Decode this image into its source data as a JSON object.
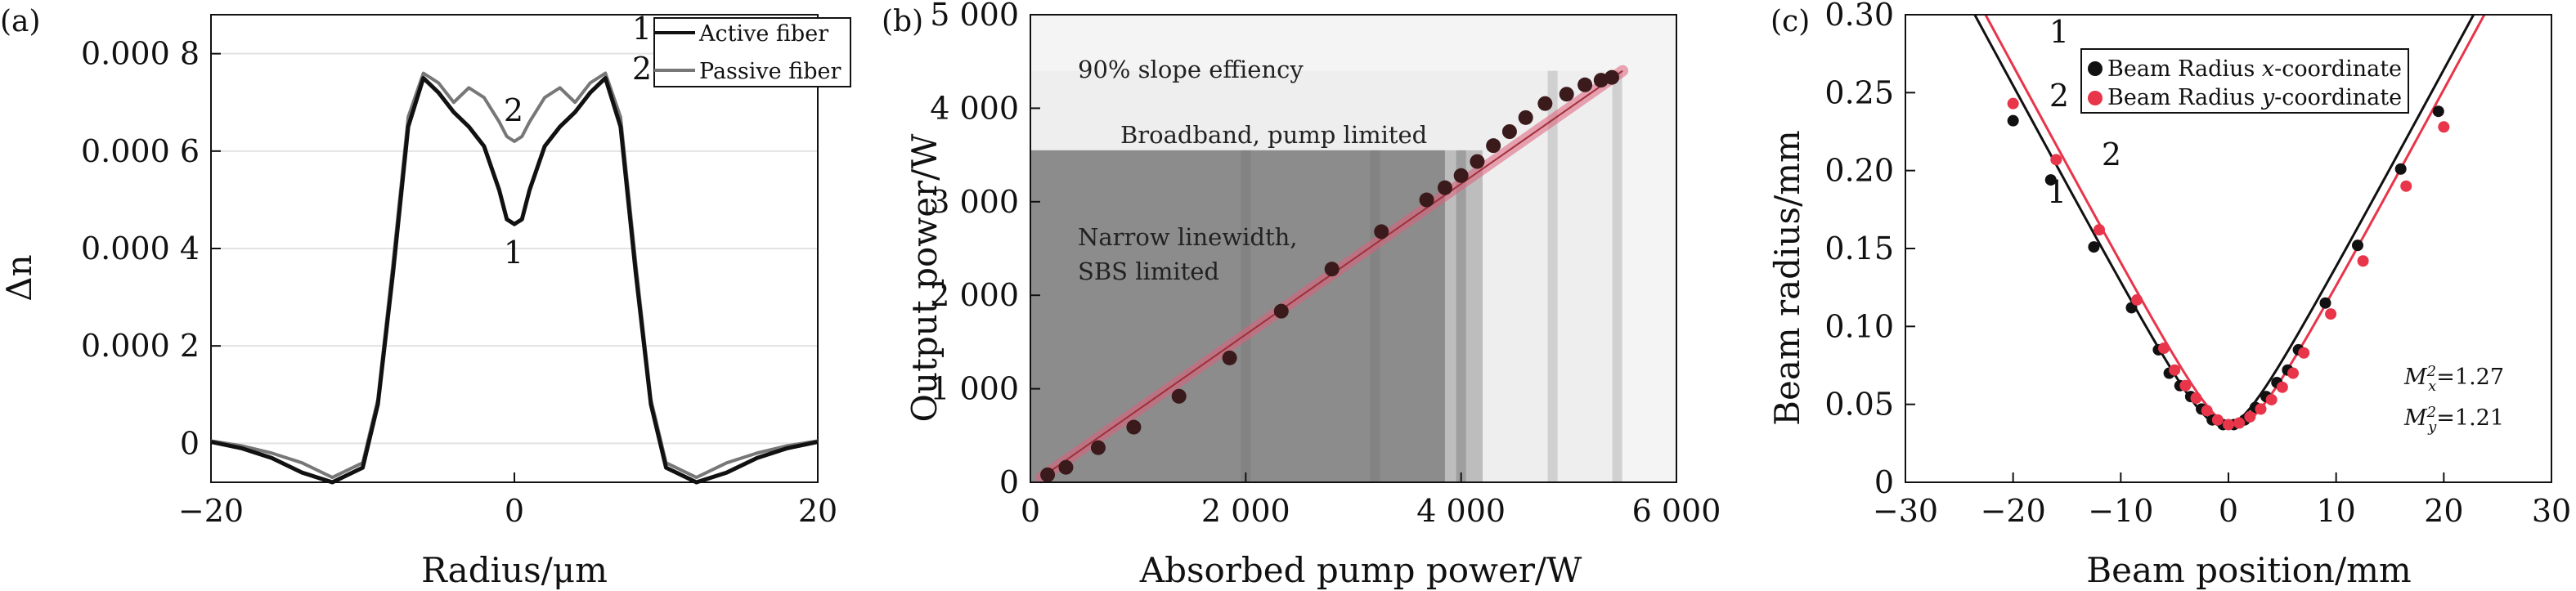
{
  "chart_data": [
    {
      "panel_label": "(a)",
      "type": "line",
      "xlabel": "Radius/μm",
      "ylabel": "Δn",
      "xlim": [
        -20,
        20
      ],
      "ylim": [
        -8e-05,
        0.00088
      ],
      "x_ticks": [
        -20,
        0,
        20
      ],
      "x_tick_labels": [
        "−20",
        "0",
        "20"
      ],
      "y_ticks": [
        0,
        0.0002,
        0.0004,
        0.0006,
        0.0008
      ],
      "y_tick_labels": [
        "0",
        "0.000 2",
        "0.000 4",
        "0.000 6",
        "0.000 8"
      ],
      "legend": {
        "placement": "top-right",
        "entries": [
          {
            "number": "1",
            "label": "Active fiber"
          },
          {
            "number": "2",
            "label": "Passive fiber"
          }
        ]
      },
      "annotations": [
        {
          "text": "2",
          "x": 0,
          "y": 0.00071
        },
        {
          "text": "1",
          "x": 0,
          "y": 0.00033
        }
      ],
      "series": [
        {
          "name": "Active fiber",
          "color": "#111111",
          "x": [
            -20,
            -18,
            -16,
            -14,
            -12,
            -10,
            -9,
            -8,
            -7,
            -6,
            -5,
            -4,
            -3,
            -2,
            -1,
            -0.5,
            0,
            0.5,
            1,
            2,
            3,
            4,
            5,
            6,
            7,
            8,
            9,
            10,
            12,
            14,
            16,
            18,
            20
          ],
          "y": [
            3e-06,
            -1e-05,
            -3e-05,
            -6e-05,
            -8e-05,
            -5e-05,
            8e-05,
            0.00035,
            0.00065,
            0.00075,
            0.00072,
            0.00068,
            0.00065,
            0.00061,
            0.00052,
            0.00046,
            0.00045,
            0.00046,
            0.00052,
            0.00061,
            0.00065,
            0.00068,
            0.00072,
            0.00075,
            0.00065,
            0.00035,
            8e-05,
            -5e-05,
            -8e-05,
            -6e-05,
            -3e-05,
            -1e-05,
            3e-06
          ]
        },
        {
          "name": "Passive fiber",
          "color": "#777777",
          "x": [
            -20,
            -18,
            -16,
            -14,
            -12,
            -10,
            -9,
            -8,
            -7,
            -6,
            -5,
            -4,
            -3,
            -2,
            -1,
            -0.5,
            0,
            0.5,
            1,
            2,
            3,
            4,
            5,
            6,
            7,
            8,
            9,
            10,
            12,
            14,
            16,
            18,
            20
          ],
          "y": [
            5e-06,
            -5e-06,
            -2e-05,
            -4e-05,
            -7e-05,
            -4e-05,
            9e-05,
            0.00037,
            0.00067,
            0.00076,
            0.00074,
            0.0007,
            0.00073,
            0.00071,
            0.00066,
            0.00063,
            0.00062,
            0.00063,
            0.00066,
            0.00071,
            0.00073,
            0.0007,
            0.00074,
            0.00076,
            0.00067,
            0.00037,
            9e-05,
            -4e-05,
            -7e-05,
            -4e-05,
            -2e-05,
            -5e-06,
            5e-06
          ]
        }
      ]
    },
    {
      "panel_label": "(b)",
      "type": "scatter",
      "xlabel": "Absorbed pump power/W",
      "ylabel": "Output power/W",
      "xlim": [
        0,
        6000
      ],
      "ylim": [
        0,
        5000
      ],
      "x_ticks": [
        0,
        2000,
        4000,
        6000
      ],
      "x_tick_labels": [
        "0",
        "2 000",
        "4 000",
        "6 000"
      ],
      "y_ticks": [
        0,
        1000,
        2000,
        3000,
        4000,
        5000
      ],
      "y_tick_labels": [
        "0",
        "1 000",
        "2 000",
        "3 000",
        "4 000",
        "5 000"
      ],
      "regions": [
        {
          "label": "90% slope effiency",
          "x_end": 5450,
          "y_top": 4400,
          "color": "#eeeeee"
        },
        {
          "label": "Broadband, pump limited",
          "x_end": 4200,
          "y_top": 3550,
          "color": "#bdbdbd"
        },
        {
          "label": "Narrow linewidth,",
          "label2": "SBS limited",
          "x_end": 3850,
          "y_top": 3550,
          "color": "#8c8c8c"
        }
      ],
      "fit_line": {
        "color": "#e0607a",
        "x": [
          100,
          5500
        ],
        "y": [
          50,
          4400
        ]
      },
      "points": {
        "color": "#3a1a1a",
        "x": [
          160,
          330,
          630,
          960,
          1380,
          1850,
          2330,
          2800,
          3260,
          3680,
          3850,
          4000,
          4150,
          4300,
          4450,
          4600,
          4780,
          4980,
          5150,
          5300,
          5400
        ],
        "y": [
          80,
          160,
          370,
          590,
          920,
          1330,
          1830,
          2280,
          2680,
          3020,
          3150,
          3280,
          3430,
          3600,
          3750,
          3900,
          4050,
          4150,
          4250,
          4300,
          4330
        ]
      }
    },
    {
      "panel_label": "(c)",
      "type": "scatter",
      "xlabel": "Beam position/mm",
      "ylabel": "Beam radius/mm",
      "xlim": [
        -30,
        30
      ],
      "ylim": [
        0,
        0.3
      ],
      "x_ticks": [
        -30,
        -20,
        -10,
        0,
        10,
        20,
        30
      ],
      "x_tick_labels": [
        "−30",
        "−20",
        "−10",
        "0",
        "10",
        "20",
        "30"
      ],
      "y_ticks": [
        0,
        0.05,
        0.1,
        0.15,
        0.2,
        0.25,
        0.3
      ],
      "y_tick_labels": [
        "0",
        "0.05",
        "0.10",
        "0.15",
        "0.20",
        "0.25",
        "0.30"
      ],
      "legend": {
        "placement": "top-right",
        "entries": [
          {
            "number": "1",
            "label_pre": "Beam Radius ",
            "label_italic": "x",
            "label_post": "-coordinate",
            "color": "#111111"
          },
          {
            "number": "2",
            "label_pre": "Beam Radius ",
            "label_italic": "y",
            "label_post": "-coordinate",
            "color": "#e8354a"
          }
        ]
      },
      "annotations": [
        {
          "text": "2",
          "x": -14.5,
          "y": 0.212
        },
        {
          "text": "1",
          "x": -20,
          "y": 0.185
        },
        {
          "text_pre": "M",
          "text_sup": "2",
          "text_sub": "x",
          "text_post": "=1.27",
          "x": 22,
          "y": 0.117
        },
        {
          "text_pre": "M",
          "text_sup": "2",
          "text_sub": "y",
          "text_post": "=1.21",
          "x": 22,
          "y": 0.092
        }
      ],
      "series": [
        {
          "name": "Beam Radius x-coordinate",
          "color": "#111111",
          "fit": {
            "w0": 0.036,
            "z0": -0.4,
            "zr": 2.8
          },
          "x": [
            -20,
            -16.5,
            -12.5,
            -9,
            -6.5,
            -5.5,
            -4.5,
            -3.5,
            -2.5,
            -1.5,
            -0.5,
            0.5,
            1.5,
            2.5,
            3.5,
            4.5,
            5.5,
            6.5,
            9,
            12,
            16,
            19.5
          ],
          "y": [
            0.232,
            0.194,
            0.151,
            0.112,
            0.085,
            0.07,
            0.062,
            0.055,
            0.047,
            0.04,
            0.037,
            0.037,
            0.04,
            0.048,
            0.055,
            0.064,
            0.072,
            0.085,
            0.115,
            0.152,
            0.201,
            0.238
          ]
        },
        {
          "name": "Beam Radius y-coordinate",
          "color": "#e8354a",
          "fit": {
            "w0": 0.036,
            "z0": 0.6,
            "zr": 2.8
          },
          "x": [
            -20,
            -16,
            -12,
            -8.5,
            -6,
            -5,
            -4,
            -3,
            -2,
            -1,
            0,
            1,
            2,
            3,
            4,
            5,
            6,
            7,
            9.5,
            12.5,
            16.5,
            20
          ],
          "y": [
            0.243,
            0.207,
            0.162,
            0.117,
            0.086,
            0.072,
            0.062,
            0.054,
            0.046,
            0.04,
            0.037,
            0.038,
            0.042,
            0.047,
            0.053,
            0.061,
            0.07,
            0.083,
            0.108,
            0.142,
            0.19,
            0.228
          ]
        }
      ]
    }
  ]
}
